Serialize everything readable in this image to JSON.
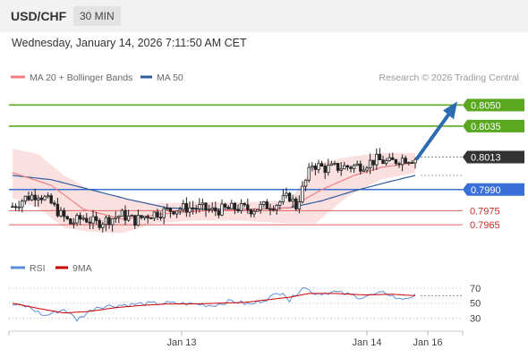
{
  "header": {
    "symbol": "USD/CHF",
    "timeframe": "30 MIN"
  },
  "datetime": "Wednesday, January 14, 2026 7:11:50 AM CET",
  "legend": {
    "ma20_label": "MA 20 + Bollinger Bands",
    "ma50_label": "MA 50",
    "ma20_color": "#f08080",
    "ma50_color": "#2f5c9e"
  },
  "attribution": "Research © 2026 Trading Central",
  "rsi_legend": {
    "rsi_label": "RSI",
    "ma_label": "9MA",
    "rsi_color": "#5b8fd8",
    "ma_color": "#cc0000"
  },
  "chart_data": {
    "type": "candlestick",
    "ylim": [
      0.7953,
      0.8061
    ],
    "rsi_ylim": [
      15,
      82
    ],
    "x_ticks": [
      "Jan 13",
      "Jan 14",
      "Jan 16"
    ],
    "levels": [
      {
        "value": 0.805,
        "label": "0.8050",
        "kind": "resistance",
        "color": "#5aa820"
      },
      {
        "value": 0.8035,
        "label": "0.8035",
        "kind": "resistance",
        "color": "#5aa820"
      },
      {
        "value": 0.8013,
        "label": "0.8013",
        "kind": "last",
        "color": "#333333"
      },
      {
        "value": 0.799,
        "label": "0.7990",
        "kind": "pivot",
        "color": "#3a6fd8"
      },
      {
        "value": 0.7975,
        "label": "0.7975",
        "kind": "support",
        "color": "#e06060"
      },
      {
        "value": 0.7965,
        "label": "0.7965",
        "kind": "support",
        "color": "#e06060"
      }
    ],
    "rsi_levels": [
      70,
      50,
      30
    ],
    "close_anchors": [
      [
        0,
        0.7978
      ],
      [
        4,
        0.7984
      ],
      [
        8,
        0.7987
      ],
      [
        12,
        0.798
      ],
      [
        15,
        0.7972
      ],
      [
        18,
        0.7966
      ],
      [
        22,
        0.797
      ],
      [
        26,
        0.7966
      ],
      [
        30,
        0.7969
      ],
      [
        34,
        0.7972
      ],
      [
        38,
        0.7968
      ],
      [
        42,
        0.7972
      ],
      [
        46,
        0.7974
      ],
      [
        50,
        0.7976
      ],
      [
        54,
        0.7977
      ],
      [
        58,
        0.7977
      ],
      [
        62,
        0.7975
      ],
      [
        66,
        0.7976
      ],
      [
        70,
        0.7977
      ],
      [
        74,
        0.7976
      ],
      [
        78,
        0.7978
      ],
      [
        82,
        0.798
      ],
      [
        86,
        0.7985
      ],
      [
        88,
        0.7978
      ],
      [
        91,
        0.7996
      ],
      [
        93,
        0.8008
      ],
      [
        97,
        0.8005
      ],
      [
        103,
        0.8006
      ],
      [
        108,
        0.8007
      ],
      [
        113,
        0.8011
      ],
      [
        117,
        0.8009
      ],
      [
        121,
        0.8012
      ],
      [
        125,
        0.8012
      ]
    ],
    "ma20_anchors": [
      [
        0,
        0.8002
      ],
      [
        12,
        0.7993
      ],
      [
        22,
        0.7976
      ],
      [
        34,
        0.7969
      ],
      [
        48,
        0.7973
      ],
      [
        60,
        0.7975
      ],
      [
        72,
        0.7976
      ],
      [
        86,
        0.7977
      ],
      [
        96,
        0.799
      ],
      [
        106,
        0.8
      ],
      [
        115,
        0.8006
      ],
      [
        125,
        0.8009
      ]
    ],
    "ma50_anchors": [
      [
        0,
        0.8
      ],
      [
        12,
        0.7997
      ],
      [
        24,
        0.799
      ],
      [
        36,
        0.7983
      ],
      [
        48,
        0.7977
      ],
      [
        60,
        0.7976
      ],
      [
        72,
        0.7976
      ],
      [
        86,
        0.7977
      ],
      [
        96,
        0.7982
      ],
      [
        106,
        0.7989
      ],
      [
        116,
        0.7995
      ],
      [
        125,
        0.8
      ]
    ],
    "bb_upper_anchors": [
      [
        0,
        0.8019
      ],
      [
        8,
        0.8015
      ],
      [
        16,
        0.8
      ],
      [
        24,
        0.799
      ],
      [
        34,
        0.7984
      ],
      [
        44,
        0.798
      ],
      [
        56,
        0.7981
      ],
      [
        70,
        0.7981
      ],
      [
        86,
        0.7982
      ],
      [
        94,
        0.8008
      ],
      [
        104,
        0.8013
      ],
      [
        114,
        0.8016
      ],
      [
        125,
        0.8016
      ]
    ],
    "bb_lower_anchors": [
      [
        0,
        0.7984
      ],
      [
        8,
        0.7977
      ],
      [
        16,
        0.7963
      ],
      [
        24,
        0.796
      ],
      [
        34,
        0.7959
      ],
      [
        44,
        0.7966
      ],
      [
        56,
        0.7968
      ],
      [
        70,
        0.7968
      ],
      [
        86,
        0.7966
      ],
      [
        94,
        0.7966
      ],
      [
        104,
        0.7985
      ],
      [
        114,
        0.7997
      ],
      [
        125,
        0.8002
      ]
    ],
    "rsi_anchors": [
      [
        0,
        48
      ],
      [
        5,
        45
      ],
      [
        10,
        33
      ],
      [
        16,
        42
      ],
      [
        20,
        28
      ],
      [
        26,
        45
      ],
      [
        32,
        47
      ],
      [
        40,
        49
      ],
      [
        48,
        50
      ],
      [
        56,
        49
      ],
      [
        62,
        47
      ],
      [
        68,
        53
      ],
      [
        74,
        48
      ],
      [
        80,
        58
      ],
      [
        84,
        66
      ],
      [
        86,
        53
      ],
      [
        90,
        72
      ],
      [
        94,
        63
      ],
      [
        100,
        65
      ],
      [
        108,
        58
      ],
      [
        116,
        64
      ],
      [
        120,
        55
      ],
      [
        125,
        60
      ]
    ],
    "rsi_ma_anchors": [
      [
        0,
        50
      ],
      [
        8,
        43
      ],
      [
        16,
        37
      ],
      [
        24,
        39
      ],
      [
        32,
        44
      ],
      [
        40,
        47
      ],
      [
        48,
        49
      ],
      [
        56,
        49
      ],
      [
        64,
        50
      ],
      [
        72,
        51
      ],
      [
        80,
        55
      ],
      [
        86,
        58
      ],
      [
        92,
        63
      ],
      [
        100,
        63
      ],
      [
        110,
        61
      ],
      [
        118,
        62
      ],
      [
        125,
        60
      ]
    ],
    "projection": {
      "from_index": 125,
      "from_value": 0.8012,
      "to_value": 0.805
    }
  }
}
